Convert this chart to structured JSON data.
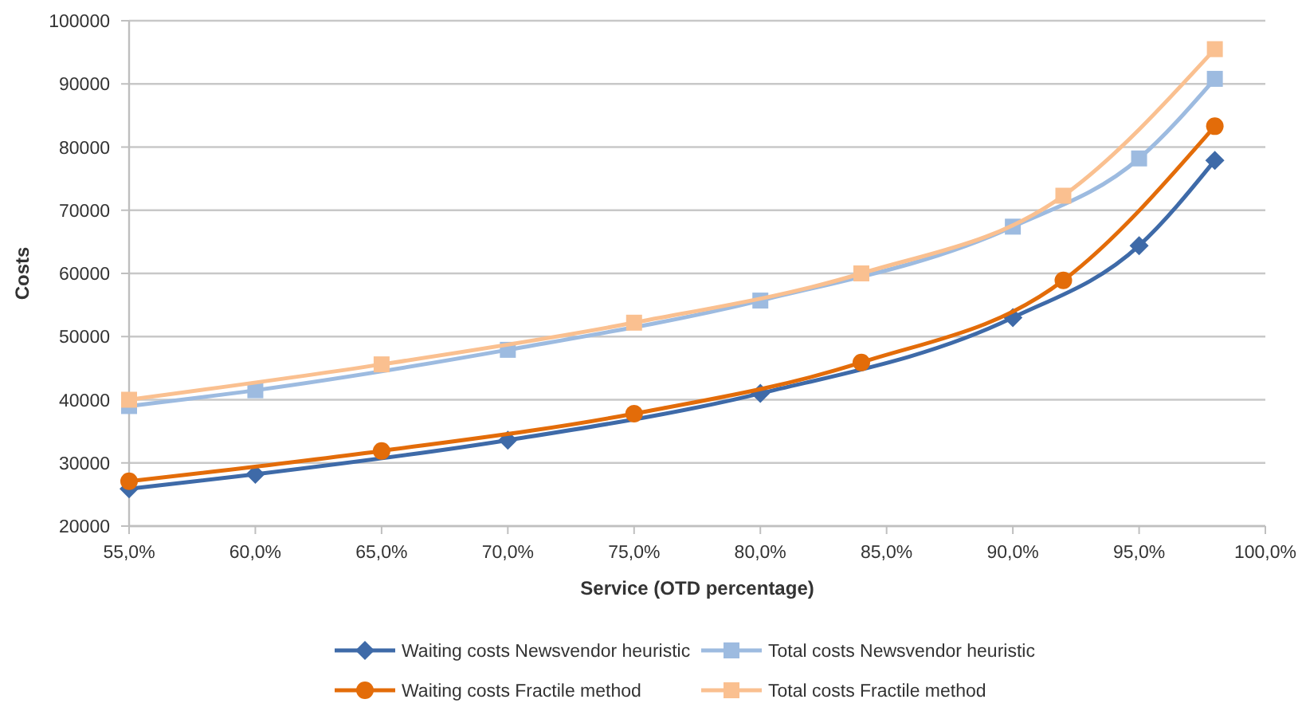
{
  "chart_data": {
    "type": "line",
    "xlabel": "Service (OTD percentage)",
    "ylabel": "Costs",
    "xlim": [
      55,
      100
    ],
    "xticks": [
      {
        "value": 55,
        "label": "55,0%"
      },
      {
        "value": 60,
        "label": "60,0%"
      },
      {
        "value": 65,
        "label": "65,0%"
      },
      {
        "value": 70,
        "label": "70,0%"
      },
      {
        "value": 75,
        "label": "75,0%"
      },
      {
        "value": 80,
        "label": "80,0%"
      },
      {
        "value": 85,
        "label": "85,0%"
      },
      {
        "value": 90,
        "label": "90,0%"
      },
      {
        "value": 95,
        "label": "95,0%"
      },
      {
        "value": 100,
        "label": "100,0%"
      }
    ],
    "ylim": [
      20000,
      100000
    ],
    "yticks": [
      20000,
      30000,
      40000,
      50000,
      60000,
      70000,
      80000,
      90000,
      100000
    ],
    "grid": "y",
    "legend": "bottom",
    "series": [
      {
        "name": "Waiting costs Newsvendor heuristic",
        "color": "#3e6aa8",
        "marker": "diamond",
        "x": [
          55,
          60,
          70,
          80,
          90,
          95,
          98
        ],
        "values": [
          25900,
          28200,
          33600,
          41000,
          53000,
          64400,
          77900
        ]
      },
      {
        "name": "Total costs Newsvendor heuristic",
        "color": "#9dbbe0",
        "marker": "square",
        "x": [
          55,
          60,
          70,
          80,
          90,
          95,
          98
        ],
        "values": [
          39000,
          41500,
          47900,
          55700,
          67400,
          78200,
          90800
        ]
      },
      {
        "name": "Waiting costs Fractile method",
        "color": "#e36c09",
        "marker": "circle",
        "x": [
          55,
          65,
          75,
          84,
          92,
          98
        ],
        "values": [
          27100,
          31900,
          37800,
          45900,
          58900,
          83300
        ]
      },
      {
        "name": "Total costs Fractile method",
        "color": "#fac090",
        "marker": "square",
        "x": [
          55,
          65,
          75,
          84,
          92,
          98
        ],
        "values": [
          40000,
          45600,
          52200,
          60000,
          72300,
          95500
        ]
      }
    ]
  }
}
